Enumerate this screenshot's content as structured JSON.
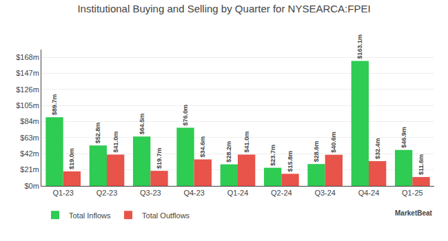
{
  "chart_data": {
    "type": "bar",
    "title": "Institutional Buying and Selling by Quarter for NYSEARCA:FPEI",
    "categories": [
      "Q1-23",
      "Q2-23",
      "Q3-23",
      "Q4-23",
      "Q1-24",
      "Q2-24",
      "Q3-24",
      "Q4-24",
      "Q1-25"
    ],
    "series": [
      {
        "name": "Total Inflows",
        "color": "#2ecc52",
        "values": [
          89.7,
          52.8,
          64.5,
          76.0,
          28.2,
          23.7,
          28.6,
          163.1,
          46.9
        ],
        "value_labels": [
          "$89.7m",
          "$52.8m",
          "$64.5m",
          "$76.0m",
          "$28.2m",
          "$23.7m",
          "$28.6m",
          "$163.1m",
          "$46.9m"
        ]
      },
      {
        "name": "Total Outflows",
        "color": "#e8534a",
        "values": [
          19.0,
          41.0,
          19.7,
          34.6,
          41.0,
          15.8,
          40.6,
          32.4,
          11.6
        ],
        "value_labels": [
          "$19.0m",
          "$41.0m",
          "$19.7m",
          "$34.6m",
          "$41.0m",
          "$15.8m",
          "$40.6m",
          "$32.4m",
          "$11.6m"
        ]
      }
    ],
    "ylim": [
      0,
      178
    ],
    "yticks": [
      {
        "value": 0,
        "label": "$0m"
      },
      {
        "value": 21,
        "label": "$21m"
      },
      {
        "value": 42,
        "label": "$42m"
      },
      {
        "value": 63,
        "label": "$63m"
      },
      {
        "value": 84,
        "label": "$84m"
      },
      {
        "value": 105,
        "label": "$105m"
      },
      {
        "value": 126,
        "label": "$126m"
      },
      {
        "value": 147,
        "label": "$147m"
      },
      {
        "value": 168,
        "label": "$168m"
      }
    ],
    "grid": true,
    "legend": "lower left",
    "data_labels": true,
    "annotations": [
      "MarketBeat"
    ]
  }
}
